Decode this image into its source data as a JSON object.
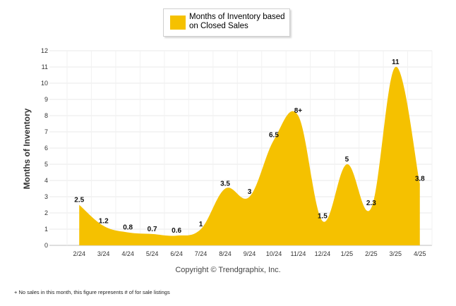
{
  "chart_data": {
    "type": "area",
    "legend": "Months of Inventory based on Closed Sales",
    "legend_placement": "top-center",
    "ylabel": "Months of Inventory",
    "xlabel": "",
    "ylim": [
      0,
      12
    ],
    "yticks": [
      0,
      1,
      2,
      3,
      4,
      5,
      6,
      7,
      8,
      9,
      10,
      11,
      12
    ],
    "categories": [
      "2/24",
      "3/24",
      "4/24",
      "5/24",
      "6/24",
      "7/24",
      "8/24",
      "9/24",
      "10/24",
      "11/24",
      "12/24",
      "1/25",
      "2/25",
      "3/25",
      "4/25"
    ],
    "values": [
      2.5,
      1.2,
      0.8,
      0.7,
      0.6,
      1,
      3.5,
      3,
      6.5,
      8,
      1.5,
      5,
      2.3,
      11,
      3.8
    ],
    "data_labels": [
      "2.5",
      "1.2",
      "0.8",
      "0.7",
      "0.6",
      "1",
      "3.5",
      "3",
      "6.5",
      "8+",
      "1.5",
      "5",
      "2.3",
      "11",
      "3.8"
    ],
    "grid": true,
    "color": "#f5c100"
  },
  "copyright": "Copyright © Trendgraphix, Inc.",
  "footnote": "+ No sales in this month, this figure represents # of for sale listings"
}
